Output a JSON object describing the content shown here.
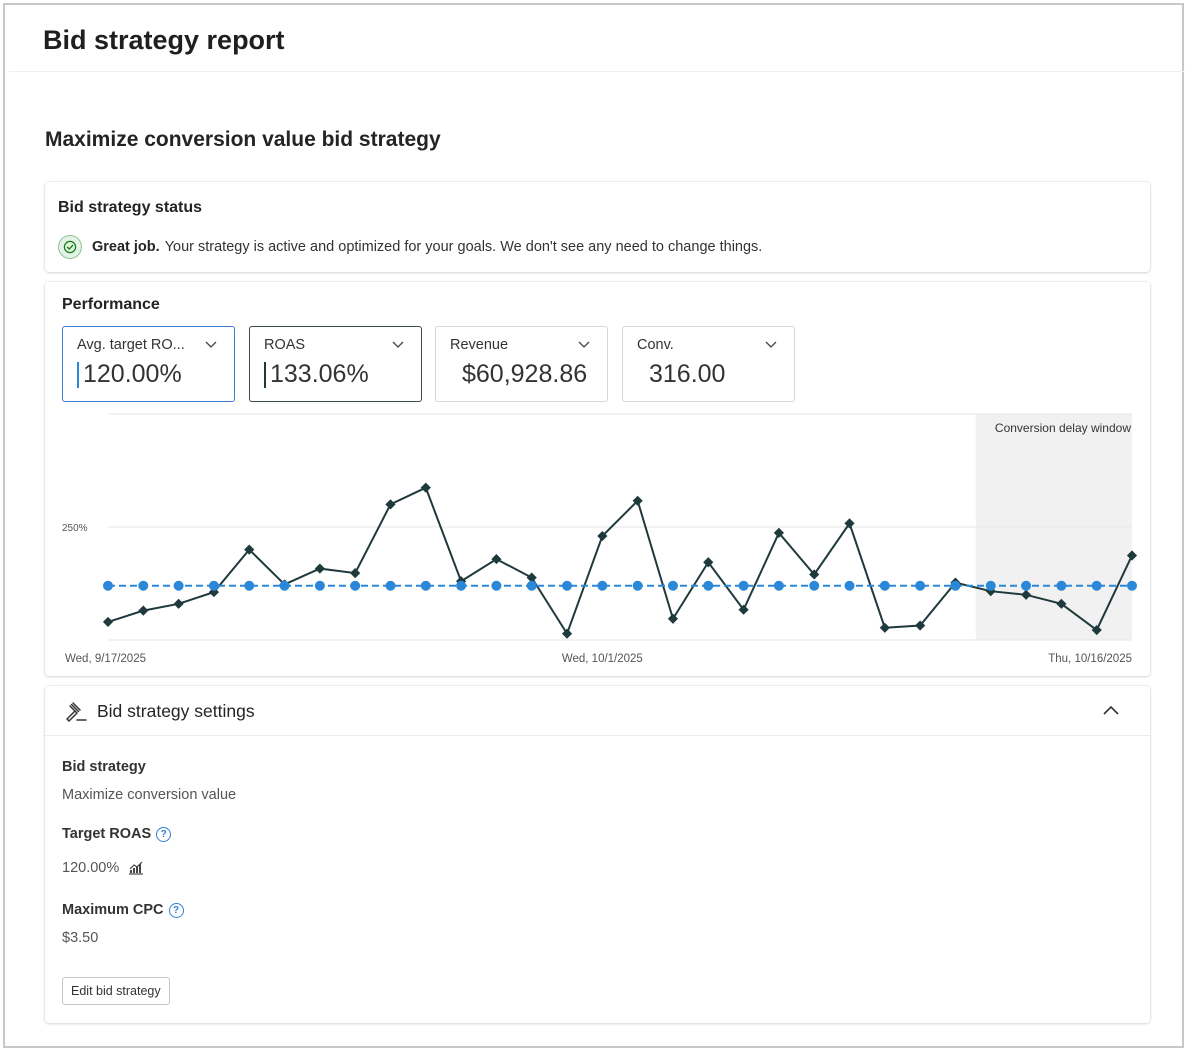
{
  "page": {
    "title": "Bid strategy report",
    "section_title": "Maximize conversion value bid strategy"
  },
  "status": {
    "title": "Bid strategy status",
    "strong": "Great job.",
    "message": "Your strategy is active and optimized for your goals. We don't see any need to change things.",
    "icon": "check-circle-icon",
    "color": "#107c10"
  },
  "performance": {
    "title": "Performance",
    "metrics": [
      {
        "label": "Avg. target RO...",
        "value": "120.00%",
        "marker_color": "#2b88d8"
      },
      {
        "label": "ROAS",
        "value": "133.06%",
        "marker_color": "#1f3a3d"
      },
      {
        "label": "Revenue",
        "value": "$60,928.86"
      },
      {
        "label": "Conv.",
        "value": "316.00"
      }
    ]
  },
  "chart_data": {
    "type": "line",
    "title": "",
    "xlabel": "",
    "ylabel": "",
    "x_tick_labels": [
      "Wed, 9/17/2025",
      "Wed, 10/1/2025",
      "Thu, 10/16/2025"
    ],
    "y_tick_labels": [
      "250%"
    ],
    "ylim": [
      0,
      500
    ],
    "grid": true,
    "annotation": "Conversion delay window",
    "annotation_start_index": 25,
    "series": [
      {
        "color": "#1f3a3d",
        "marker": "diamond",
        "values": [
          40,
          65,
          80,
          106,
          200,
          123,
          158,
          148,
          300,
          337,
          130,
          179,
          138,
          14,
          230,
          308,
          47,
          172,
          67,
          237,
          145,
          258,
          27,
          32,
          127,
          108,
          100,
          80,
          22,
          187
        ]
      },
      {
        "color": "#2b88d8",
        "marker": "circle",
        "dashed": true,
        "values": [
          120,
          120,
          120,
          120,
          120,
          120,
          120,
          120,
          120,
          120,
          120,
          120,
          120,
          120,
          120,
          120,
          120,
          120,
          120,
          120,
          120,
          120,
          120,
          120,
          120,
          120,
          120,
          120,
          120,
          120
        ]
      }
    ]
  },
  "settings": {
    "title": "Bid strategy settings",
    "bid_strategy_label": "Bid strategy",
    "bid_strategy_value": "Maximize conversion value",
    "target_roas_label": "Target ROAS",
    "target_roas_value": "120.00%",
    "max_cpc_label": "Maximum CPC",
    "max_cpc_value": "$3.50",
    "edit_button": "Edit bid strategy",
    "help_glyph": "?"
  }
}
